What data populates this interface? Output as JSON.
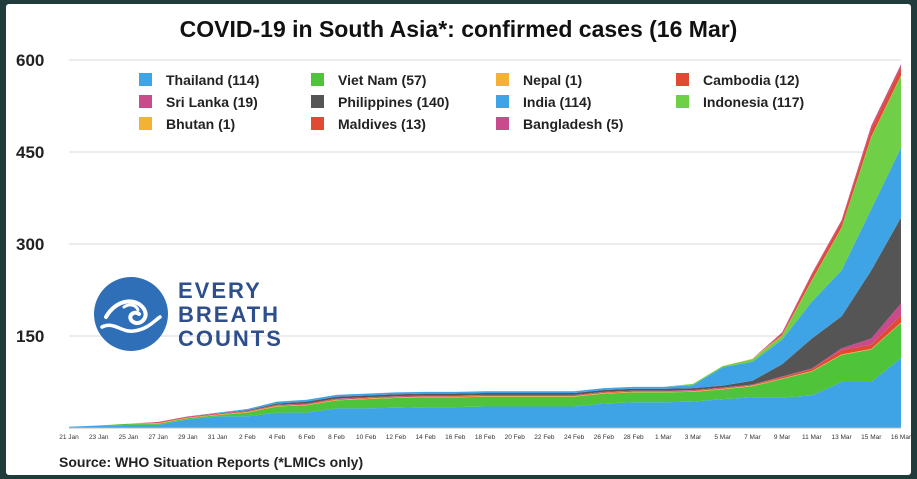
{
  "chart_data": {
    "type": "area",
    "stacked": true,
    "title": "COVID-19 in South Asia*: confirmed cases (16 Mar)",
    "source": "Source: WHO Situation Reports (*LMICs only)",
    "ylim": [
      0,
      600
    ],
    "yticks": [
      150,
      300,
      450,
      600
    ],
    "grid": "horizontal",
    "legend_position": "top",
    "x": [
      "21 Jan",
      "23 Jan",
      "25 Jan",
      "27 Jan",
      "29 Jan",
      "31 Jan",
      "2 Feb",
      "4 Feb",
      "6 Feb",
      "8 Feb",
      "10 Feb",
      "12 Feb",
      "14 Feb",
      "16 Feb",
      "18 Feb",
      "20 Feb",
      "22 Feb",
      "24 Feb",
      "26 Feb",
      "28 Feb",
      "1 Mar",
      "3 Mar",
      "5 Mar",
      "7 Mar",
      "9 Mar",
      "11 Mar",
      "13 Mar",
      "15 Mar",
      "16 Mar"
    ],
    "series": [
      {
        "name": "Thailand (114)",
        "color": "#3fa4e6",
        "values": [
          2,
          4,
          5,
          5,
          14,
          19,
          19,
          25,
          25,
          32,
          32,
          33,
          34,
          34,
          35,
          35,
          35,
          35,
          40,
          42,
          42,
          43,
          47,
          50,
          50,
          53,
          75,
          75,
          114
        ]
      },
      {
        "name": "Viet Nam (57)",
        "color": "#4fc43a",
        "values": [
          0,
          0,
          2,
          2,
          2,
          2,
          6,
          10,
          12,
          13,
          15,
          16,
          16,
          16,
          16,
          16,
          16,
          16,
          16,
          16,
          16,
          16,
          16,
          18,
          30,
          39,
          44,
          53,
          57
        ]
      },
      {
        "name": "Nepal (1)",
        "color": "#f2b233",
        "values": [
          0,
          0,
          0,
          1,
          1,
          1,
          1,
          1,
          1,
          1,
          1,
          1,
          1,
          1,
          1,
          1,
          1,
          1,
          1,
          1,
          1,
          1,
          1,
          1,
          1,
          1,
          1,
          1,
          1
        ]
      },
      {
        "name": "Cambodia (12)",
        "color": "#e04a35",
        "values": [
          0,
          0,
          0,
          1,
          1,
          1,
          1,
          1,
          1,
          1,
          1,
          1,
          1,
          1,
          1,
          1,
          1,
          1,
          1,
          1,
          1,
          1,
          1,
          1,
          2,
          3,
          7,
          7,
          12
        ]
      },
      {
        "name": "Sri Lanka (19)",
        "color": "#c94b8c",
        "values": [
          0,
          0,
          0,
          1,
          1,
          1,
          1,
          1,
          1,
          1,
          1,
          1,
          1,
          1,
          1,
          1,
          1,
          1,
          1,
          1,
          1,
          1,
          1,
          1,
          1,
          1,
          3,
          10,
          19
        ]
      },
      {
        "name": "Philippines (140)",
        "color": "#555555",
        "values": [
          0,
          0,
          0,
          0,
          0,
          0,
          1,
          2,
          3,
          3,
          3,
          3,
          3,
          3,
          3,
          3,
          3,
          3,
          3,
          3,
          3,
          3,
          3,
          6,
          20,
          49,
          52,
          111,
          140
        ]
      },
      {
        "name": "India (114)",
        "color": "#3fa4e6",
        "values": [
          0,
          0,
          0,
          0,
          0,
          1,
          2,
          3,
          3,
          3,
          3,
          3,
          3,
          3,
          3,
          3,
          3,
          3,
          3,
          3,
          3,
          5,
          30,
          31,
          40,
          60,
          75,
          100,
          114
        ]
      },
      {
        "name": "Indonesia (117)",
        "color": "#6fd047",
        "values": [
          0,
          0,
          0,
          0,
          0,
          0,
          0,
          0,
          0,
          0,
          0,
          0,
          0,
          0,
          0,
          0,
          0,
          0,
          0,
          0,
          0,
          2,
          2,
          4,
          6,
          34,
          69,
          117,
          117
        ]
      },
      {
        "name": "Bhutan (1)",
        "color": "#f2b233",
        "values": [
          0,
          0,
          0,
          0,
          0,
          0,
          0,
          0,
          0,
          0,
          0,
          0,
          0,
          0,
          0,
          0,
          0,
          0,
          0,
          0,
          0,
          0,
          0,
          1,
          1,
          1,
          1,
          1,
          1
        ]
      },
      {
        "name": "Maldives (13)",
        "color": "#e04a35",
        "values": [
          0,
          0,
          0,
          0,
          0,
          0,
          0,
          0,
          0,
          0,
          0,
          0,
          0,
          0,
          0,
          0,
          0,
          0,
          0,
          0,
          0,
          0,
          0,
          0,
          2,
          8,
          9,
          13,
          13
        ]
      },
      {
        "name": "Bangladesh (5)",
        "color": "#c94b8c",
        "values": [
          0,
          0,
          0,
          0,
          0,
          0,
          0,
          0,
          0,
          0,
          0,
          0,
          0,
          0,
          0,
          0,
          0,
          0,
          0,
          0,
          0,
          0,
          0,
          0,
          3,
          3,
          3,
          5,
          5
        ]
      }
    ]
  },
  "logo": {
    "line1": "EVERY",
    "line2": "BREATH",
    "line3": "COUNTS"
  }
}
